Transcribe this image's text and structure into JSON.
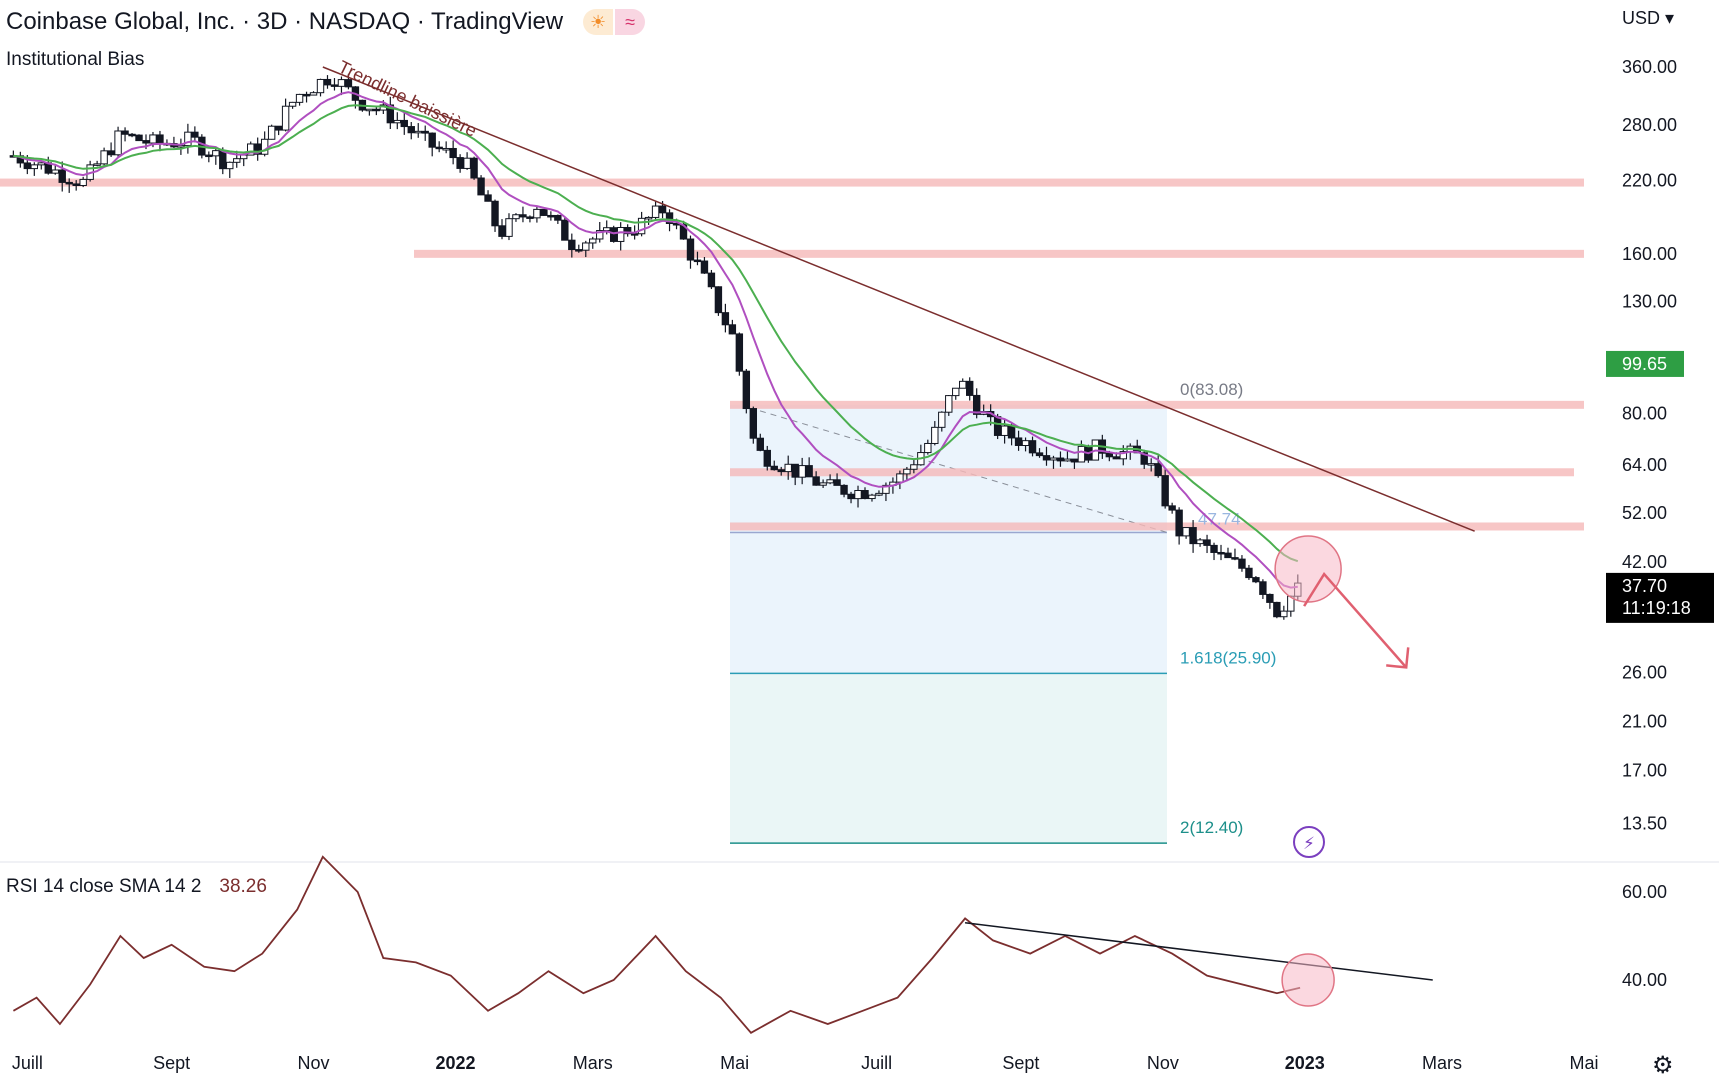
{
  "header": {
    "title": "Coinbase Global, Inc. · 3D · NASDAQ · TradingView",
    "indicator": "Institutional Bias",
    "currency": "USD",
    "currency_caret": "▾",
    "icons": [
      "sun-icon",
      "wave-icon"
    ]
  },
  "rsi_header": {
    "label": "RSI 14 close SMA 14 2",
    "value": "38.26"
  },
  "colors": {
    "candle": "#131722",
    "ema_purple": "#b04fc0",
    "ema_green": "#4caf50",
    "zone": "#f5b8b8",
    "trendline": "#7b2e2e",
    "fib_line": "#2a9db5",
    "fib_fill": "#e7f2fb",
    "arrow": "#e06070",
    "price_tag_green": "#2e9e44",
    "price_tag_black": "#000000",
    "rsi_line": "#7b2e2e"
  },
  "chart_data": [
    {
      "type": "candlestick",
      "title": "Coinbase Global, Inc. · 3D · NASDAQ · TradingView",
      "y_scale": "log",
      "ylim": [
        11.5,
        470
      ],
      "x_labels": [
        {
          "label": "Juill",
          "date": "2021-07-01"
        },
        {
          "label": "Sept",
          "date": "2021-09-01"
        },
        {
          "label": "Nov",
          "date": "2021-11-01"
        },
        {
          "label": "2022",
          "date": "2022-01-01",
          "bold": true
        },
        {
          "label": "Mars",
          "date": "2022-03-01"
        },
        {
          "label": "Mai",
          "date": "2022-05-01"
        },
        {
          "label": "Juill",
          "date": "2022-07-01"
        },
        {
          "label": "Sept",
          "date": "2022-09-01"
        },
        {
          "label": "Nov",
          "date": "2022-11-01"
        },
        {
          "label": "2023",
          "date": "2023-01-01",
          "bold": true
        },
        {
          "label": "Mars",
          "date": "2023-03-01"
        },
        {
          "label": "Mai",
          "date": "2023-05-01"
        }
      ],
      "y_ticks": [
        "360.00",
        "280.00",
        "220.00",
        "160.00",
        "130.00",
        "80.00",
        "64.00",
        "52.00",
        "42.00",
        "26.00",
        "21.00",
        "17.00",
        "13.50"
      ],
      "price_tags": [
        {
          "value": 99.65,
          "label": "99.65",
          "style": "green"
        },
        {
          "value": 37.7,
          "label": "37.70",
          "sub": "11:19:18",
          "style": "black"
        }
      ],
      "series_close": [
        {
          "date": "2021-06-25",
          "close": 245
        },
        {
          "date": "2021-07-10",
          "close": 232
        },
        {
          "date": "2021-07-25",
          "close": 218
        },
        {
          "date": "2021-08-10",
          "close": 268
        },
        {
          "date": "2021-08-25",
          "close": 258
        },
        {
          "date": "2021-09-10",
          "close": 262
        },
        {
          "date": "2021-09-25",
          "close": 238
        },
        {
          "date": "2021-10-10",
          "close": 256
        },
        {
          "date": "2021-10-25",
          "close": 318
        },
        {
          "date": "2021-11-09",
          "close": 348
        },
        {
          "date": "2021-11-20",
          "close": 312
        },
        {
          "date": "2021-12-05",
          "close": 290
        },
        {
          "date": "2021-12-20",
          "close": 258
        },
        {
          "date": "2022-01-05",
          "close": 238
        },
        {
          "date": "2022-01-20",
          "close": 175
        },
        {
          "date": "2022-02-05",
          "close": 198
        },
        {
          "date": "2022-02-20",
          "close": 168
        },
        {
          "date": "2022-03-05",
          "close": 172
        },
        {
          "date": "2022-03-20",
          "close": 180
        },
        {
          "date": "2022-04-01",
          "close": 195
        },
        {
          "date": "2022-04-15",
          "close": 152
        },
        {
          "date": "2022-04-30",
          "close": 112
        },
        {
          "date": "2022-05-10",
          "close": 68
        },
        {
          "date": "2022-05-25",
          "close": 63
        },
        {
          "date": "2022-06-10",
          "close": 58
        },
        {
          "date": "2022-06-25",
          "close": 57
        },
        {
          "date": "2022-07-10",
          "close": 60
        },
        {
          "date": "2022-07-25",
          "close": 72
        },
        {
          "date": "2022-08-05",
          "close": 93
        },
        {
          "date": "2022-08-20",
          "close": 75
        },
        {
          "date": "2022-09-05",
          "close": 70
        },
        {
          "date": "2022-09-20",
          "close": 66
        },
        {
          "date": "2022-10-05",
          "close": 69
        },
        {
          "date": "2022-10-25",
          "close": 66
        },
        {
          "date": "2022-11-08",
          "close": 48
        },
        {
          "date": "2022-11-25",
          "close": 43
        },
        {
          "date": "2022-12-10",
          "close": 40
        },
        {
          "date": "2022-12-20",
          "close": 34
        },
        {
          "date": "2022-12-30",
          "close": 37.7
        }
      ],
      "moving_averages": [
        {
          "color": "purple",
          "note": "short EMA"
        },
        {
          "color": "green",
          "note": "longer EMA"
        }
      ],
      "resistance_zones": [
        218,
        160,
        83.08,
        62,
        49
      ],
      "fibonacci": {
        "levels": [
          {
            "label": "0(83.08)",
            "value": 83.08
          },
          {
            "label": "47.74",
            "value": 47.74
          },
          {
            "label": "1.618(25.90)",
            "value": 25.9
          },
          {
            "label": "2(12.40)",
            "value": 12.4
          }
        ]
      },
      "annotations": {
        "trendline_label": "Trendline baissière",
        "trendline": {
          "from": {
            "date": "2021-11-05",
            "value": 360
          },
          "to": {
            "date": "2023-03-15",
            "value": 48
          }
        },
        "circle": {
          "date": "2022-12-30",
          "value": 46
        },
        "arrow": {
          "from": {
            "date": "2022-12-30",
            "value": 45
          },
          "to": {
            "date": "2023-02-05",
            "value": 28
          }
        }
      }
    },
    {
      "type": "line",
      "title": "RSI 14 close SMA 14 2",
      "ylim": [
        26,
        70
      ],
      "y_ticks": [
        "60.00",
        "40.00"
      ],
      "current_value": 38.26,
      "series": [
        {
          "date": "2021-06-25",
          "value": 33
        },
        {
          "date": "2021-07-05",
          "value": 36
        },
        {
          "date": "2021-07-15",
          "value": 30
        },
        {
          "date": "2021-07-28",
          "value": 39
        },
        {
          "date": "2021-08-10",
          "value": 50
        },
        {
          "date": "2021-08-20",
          "value": 45
        },
        {
          "date": "2021-09-01",
          "value": 48
        },
        {
          "date": "2021-09-15",
          "value": 43
        },
        {
          "date": "2021-09-28",
          "value": 42
        },
        {
          "date": "2021-10-10",
          "value": 46
        },
        {
          "date": "2021-10-25",
          "value": 56
        },
        {
          "date": "2021-11-05",
          "value": 68
        },
        {
          "date": "2021-11-20",
          "value": 60
        },
        {
          "date": "2021-12-01",
          "value": 45
        },
        {
          "date": "2021-12-15",
          "value": 44
        },
        {
          "date": "2021-12-30",
          "value": 41
        },
        {
          "date": "2022-01-15",
          "value": 33
        },
        {
          "date": "2022-01-28",
          "value": 37
        },
        {
          "date": "2022-02-10",
          "value": 42
        },
        {
          "date": "2022-02-25",
          "value": 37
        },
        {
          "date": "2022-03-10",
          "value": 40
        },
        {
          "date": "2022-03-28",
          "value": 50
        },
        {
          "date": "2022-04-10",
          "value": 42
        },
        {
          "date": "2022-04-25",
          "value": 36
        },
        {
          "date": "2022-05-08",
          "value": 28
        },
        {
          "date": "2022-05-25",
          "value": 33
        },
        {
          "date": "2022-06-10",
          "value": 30
        },
        {
          "date": "2022-06-25",
          "value": 33
        },
        {
          "date": "2022-07-10",
          "value": 36
        },
        {
          "date": "2022-07-25",
          "value": 45
        },
        {
          "date": "2022-08-08",
          "value": 54
        },
        {
          "date": "2022-08-20",
          "value": 49
        },
        {
          "date": "2022-09-05",
          "value": 46
        },
        {
          "date": "2022-09-20",
          "value": 50
        },
        {
          "date": "2022-10-05",
          "value": 46
        },
        {
          "date": "2022-10-20",
          "value": 50
        },
        {
          "date": "2022-11-05",
          "value": 46
        },
        {
          "date": "2022-11-20",
          "value": 41
        },
        {
          "date": "2022-12-05",
          "value": 39
        },
        {
          "date": "2022-12-20",
          "value": 37
        },
        {
          "date": "2022-12-30",
          "value": 38.26
        }
      ],
      "annotations": {
        "trendline": {
          "from": {
            "date": "2022-08-08",
            "value": 53
          },
          "to": {
            "date": "2023-02-25",
            "value": 40
          }
        },
        "circle": {
          "date": "2022-12-30",
          "value": 40
        }
      }
    }
  ]
}
